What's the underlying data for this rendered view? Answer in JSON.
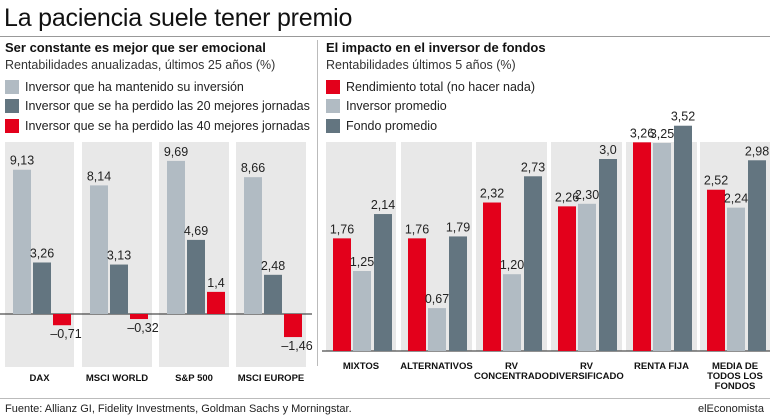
{
  "title": "La paciencia suele tener premio",
  "left": {
    "title": "Ser constante es mejor que ser emocional",
    "subtitle": "Rentabilidades anualizadas, últimos 25 años (%)"
  },
  "right": {
    "title": "El impacto en el inversor de fondos",
    "subtitle": "Rentabilidades últimos 5 años (%)"
  },
  "colors": {
    "lightgray": "#b1bbc3",
    "slate": "#637580",
    "red": "#e3001b",
    "panel": "#e8e8e8"
  },
  "chart_data": [
    {
      "type": "bar",
      "categories": [
        "DAX",
        "MSCI WORLD",
        "S&P 500",
        "MSCI EUROPE"
      ],
      "series": [
        {
          "name": "Inversor que ha mantenido su inversión",
          "values": [
            9.13,
            8.14,
            9.69,
            8.66
          ],
          "labels": [
            "9,13",
            "8,14",
            "9,69",
            "8,66"
          ],
          "color": "#b1bbc3"
        },
        {
          "name": "Inversor que se ha perdido las 20 mejores jornadas",
          "values": [
            3.26,
            3.13,
            4.69,
            2.48
          ],
          "labels": [
            "3,26",
            "3,13",
            "4,69",
            "2,48"
          ],
          "color": "#637580"
        },
        {
          "name": "Inversor que se ha perdido las 40 mejores jornadas",
          "values": [
            -0.71,
            -0.32,
            1.4,
            -1.46
          ],
          "labels": [
            "–0,71",
            "–0,32",
            "1,4",
            "–1,46"
          ],
          "color": "#e3001b"
        }
      ]
    },
    {
      "type": "bar",
      "categories": [
        "MIXTOS",
        "ALTERNATIVOS",
        "RV\nCONCENTRADO",
        "RV\nDIVERSIFICADO",
        "RENTA FIJA",
        "MEDIA DE\nTODOS LOS\nFONDOS"
      ],
      "series": [
        {
          "name": "Rendimiento total (no hacer nada)",
          "values": [
            1.76,
            1.76,
            2.32,
            2.26,
            3.26,
            2.52
          ],
          "labels": [
            "1,76",
            "1,76",
            "2,32",
            "2,26",
            "3,26",
            "2,52"
          ],
          "color": "#e3001b"
        },
        {
          "name": "Inversor promedio",
          "values": [
            1.25,
            0.67,
            1.2,
            2.3,
            3.25,
            2.24
          ],
          "labels": [
            "1,25",
            "0,67",
            "1,20",
            "2,30",
            "3,25",
            "2,24"
          ],
          "color": "#b1bbc3"
        },
        {
          "name": "Fondo promedio",
          "values": [
            2.14,
            1.79,
            2.73,
            3.0,
            3.52,
            2.98
          ],
          "labels": [
            "2,14",
            "1,79",
            "2,73",
            "3,0",
            "3,52",
            "2,98"
          ],
          "color": "#637580"
        }
      ]
    }
  ],
  "source": "Fuente: Allianz GI, Fidelity Investments, Goldman Sachs y Morningstar.",
  "brand": "elEconomista"
}
